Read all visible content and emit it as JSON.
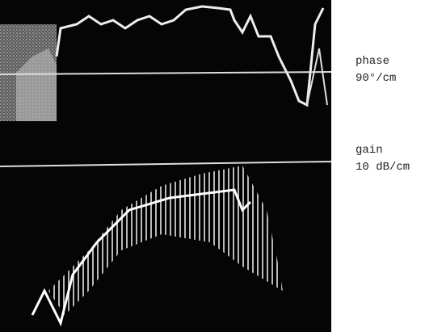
{
  "labels": {
    "phase": {
      "name": "phase",
      "scale": "90°/cm"
    },
    "gain": {
      "name": "gain",
      "scale": "10 dB/cm"
    }
  }
}
